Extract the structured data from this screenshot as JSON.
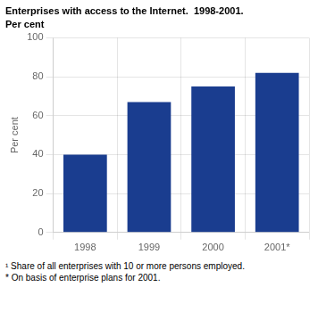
{
  "chart_data": {
    "type": "bar",
    "title": "Enterprises with access to the Internet.  1998-2001.",
    "subtitle": "Per cent",
    "ylabel": "Per cent",
    "categories": [
      "1998",
      "1999",
      "2000",
      "2001*"
    ],
    "values": [
      40,
      67,
      75,
      82
    ],
    "color": "#1a3d8f",
    "ylim": [
      0,
      100
    ],
    "yticks": [
      0,
      20,
      40,
      60,
      80,
      100
    ],
    "grid": true,
    "annotations": [
      "¹ Share of all enterprises with 10 or more persons employed.",
      "* On basis of enterprise plans for 2001."
    ]
  }
}
